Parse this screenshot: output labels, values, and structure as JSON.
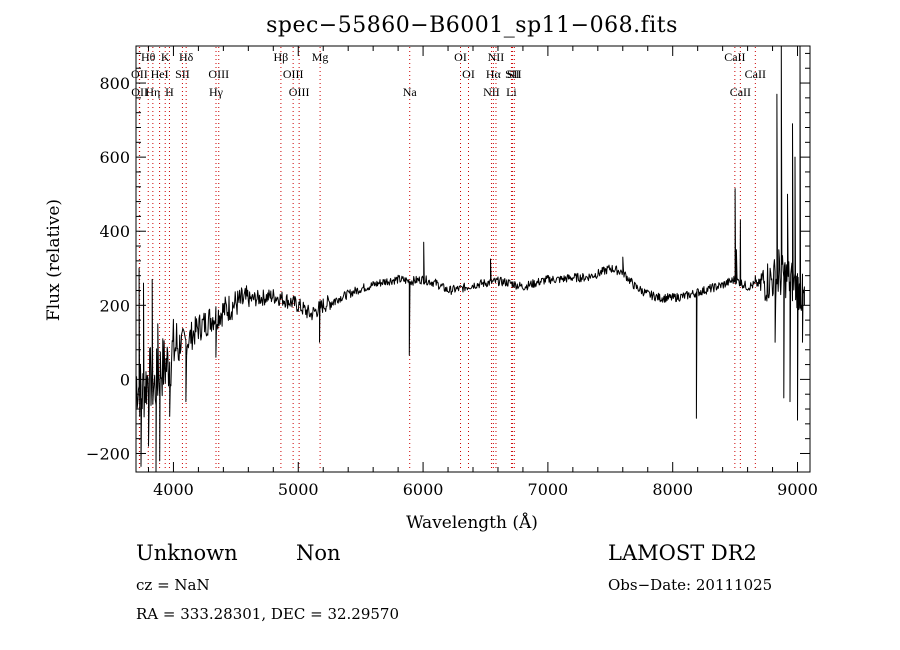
{
  "chart_data": {
    "type": "line",
    "title": "spec−55860−B6001_sp11−068.fits",
    "xlabel": "Wavelength (Å)",
    "ylabel": "Flux (relative)",
    "xlim": [
      3700,
      9100
    ],
    "ylim": [
      -250,
      900
    ],
    "grid": false,
    "x_ticks": [
      {
        "value": 4000,
        "label": "4000"
      },
      {
        "value": 5000,
        "label": "5000"
      },
      {
        "value": 6000,
        "label": "6000"
      },
      {
        "value": 7000,
        "label": "7000"
      },
      {
        "value": 8000,
        "label": "8000"
      },
      {
        "value": 9000,
        "label": "9000"
      }
    ],
    "y_ticks": [
      {
        "value": -200,
        "label": "−200"
      },
      {
        "value": 0,
        "label": "0"
      },
      {
        "value": 200,
        "label": "200"
      },
      {
        "value": 400,
        "label": "400"
      },
      {
        "value": 600,
        "label": "600"
      },
      {
        "value": 800,
        "label": "800"
      }
    ],
    "line_color": "#000000",
    "marker_color": "#cc0000",
    "spectrum_trend": [
      [
        3700,
        0
      ],
      [
        3750,
        -40
      ],
      [
        3800,
        10
      ],
      [
        3850,
        -20
      ],
      [
        3900,
        30
      ],
      [
        3950,
        40
      ],
      [
        4000,
        80
      ],
      [
        4050,
        100
      ],
      [
        4100,
        100
      ],
      [
        4150,
        120
      ],
      [
        4200,
        140
      ],
      [
        4250,
        150
      ],
      [
        4300,
        165
      ],
      [
        4350,
        175
      ],
      [
        4400,
        185
      ],
      [
        4450,
        195
      ],
      [
        4500,
        205
      ],
      [
        4550,
        210
      ],
      [
        4600,
        215
      ],
      [
        4700,
        220
      ],
      [
        4800,
        225
      ],
      [
        4900,
        215
      ],
      [
        5000,
        200
      ],
      [
        5100,
        175
      ],
      [
        5200,
        200
      ],
      [
        5300,
        215
      ],
      [
        5400,
        230
      ],
      [
        5500,
        245
      ],
      [
        5600,
        255
      ],
      [
        5700,
        265
      ],
      [
        5800,
        270
      ],
      [
        5900,
        265
      ],
      [
        6000,
        270
      ],
      [
        6100,
        260
      ],
      [
        6200,
        240
      ],
      [
        6300,
        245
      ],
      [
        6400,
        255
      ],
      [
        6500,
        260
      ],
      [
        6600,
        265
      ],
      [
        6700,
        260
      ],
      [
        6800,
        250
      ],
      [
        6900,
        260
      ],
      [
        7000,
        270
      ],
      [
        7100,
        270
      ],
      [
        7200,
        275
      ],
      [
        7300,
        275
      ],
      [
        7400,
        285
      ],
      [
        7500,
        300
      ],
      [
        7600,
        290
      ],
      [
        7700,
        250
      ],
      [
        7800,
        230
      ],
      [
        7900,
        220
      ],
      [
        8000,
        220
      ],
      [
        8100,
        225
      ],
      [
        8200,
        235
      ],
      [
        8300,
        245
      ],
      [
        8400,
        255
      ],
      [
        8500,
        270
      ],
      [
        8600,
        250
      ],
      [
        8700,
        260
      ],
      [
        8800,
        270
      ],
      [
        8900,
        280
      ],
      [
        9000,
        250
      ],
      [
        9050,
        220
      ]
    ],
    "spectrum_features": [
      {
        "x": 3725,
        "y": 300
      },
      {
        "x": 3740,
        "y": -235
      },
      {
        "x": 3760,
        "y": 260
      },
      {
        "x": 3800,
        "y": -180
      },
      {
        "x": 3830,
        "y": 270
      },
      {
        "x": 3860,
        "y": -260
      },
      {
        "x": 3875,
        "y": 150
      },
      {
        "x": 3890,
        "y": -220
      },
      {
        "x": 3970,
        "y": -100
      },
      {
        "x": 4100,
        "y": -60
      },
      {
        "x": 4340,
        "y": 60
      },
      {
        "x": 5170,
        "y": 100
      },
      {
        "x": 5890,
        "y": 65
      },
      {
        "x": 5935,
        "y": 260
      },
      {
        "x": 6005,
        "y": 370
      },
      {
        "x": 6540,
        "y": 325
      },
      {
        "x": 7600,
        "y": 330
      },
      {
        "x": 8190,
        "y": -105
      },
      {
        "x": 8500,
        "y": 515
      },
      {
        "x": 8510,
        "y": 350
      },
      {
        "x": 8542,
        "y": 430
      },
      {
        "x": 8662,
        "y": 280
      },
      {
        "x": 8820,
        "y": 100
      },
      {
        "x": 8835,
        "y": 770
      },
      {
        "x": 8850,
        "y": 350
      },
      {
        "x": 8870,
        "y": 900
      },
      {
        "x": 8890,
        "y": -50
      },
      {
        "x": 8920,
        "y": 500
      },
      {
        "x": 8940,
        "y": -60
      },
      {
        "x": 8960,
        "y": 690
      },
      {
        "x": 8980,
        "y": 600
      },
      {
        "x": 9000,
        "y": -110
      },
      {
        "x": 9020,
        "y": 900
      },
      {
        "x": 9040,
        "y": 100
      },
      {
        "x": 9055,
        "y": 200
      }
    ],
    "line_markers": [
      {
        "label": "Hθ",
        "x": 3798,
        "row": 0
      },
      {
        "label": "OII",
        "x": 3727,
        "row": 1
      },
      {
        "label": "OII",
        "x": 3729,
        "row": 2
      },
      {
        "label": "Hη",
        "x": 3835,
        "row": 2
      },
      {
        "label": "HeI",
        "x": 3889,
        "row": 1
      },
      {
        "label": "K",
        "x": 3934,
        "row": 0
      },
      {
        "label": "H",
        "x": 3968,
        "row": 2
      },
      {
        "label": "SII",
        "x": 4072,
        "row": 1
      },
      {
        "label": "Hδ",
        "x": 4102,
        "row": 0
      },
      {
        "label": "OIII",
        "x": 4363,
        "row": 1
      },
      {
        "label": "Hγ",
        "x": 4341,
        "row": 2
      },
      {
        "label": "Hβ",
        "x": 4861,
        "row": 0
      },
      {
        "label": "OIII",
        "x": 4959,
        "row": 1
      },
      {
        "label": "OIII",
        "x": 5007,
        "row": 2
      },
      {
        "label": "Mg",
        "x": 5175,
        "row": 0
      },
      {
        "label": "Na",
        "x": 5893,
        "row": 2
      },
      {
        "label": "OI",
        "x": 6300,
        "row": 0
      },
      {
        "label": "OI",
        "x": 6364,
        "row": 1
      },
      {
        "label": "NII",
        "x": 6548,
        "row": 2
      },
      {
        "label": "NII",
        "x": 6584,
        "row": 0
      },
      {
        "label": "Hα",
        "x": 6563,
        "row": 1
      },
      {
        "label": "SII",
        "x": 6716,
        "row": 1
      },
      {
        "label": "SII",
        "x": 6731,
        "row": 1
      },
      {
        "label": "Li",
        "x": 6708,
        "row": 2
      },
      {
        "label": "CaII",
        "x": 8498,
        "row": 0
      },
      {
        "label": "CaII",
        "x": 8542,
        "row": 2
      },
      {
        "label": "CaII",
        "x": 8662,
        "row": 1
      }
    ]
  },
  "footer": {
    "object_class": "Unknown",
    "subclass": "Non",
    "survey": "LAMOST DR2",
    "cz": "cz = NaN",
    "obs_date": "Obs−Date: 20111025",
    "coords": "RA = 333.28301, DEC =  32.29570"
  }
}
